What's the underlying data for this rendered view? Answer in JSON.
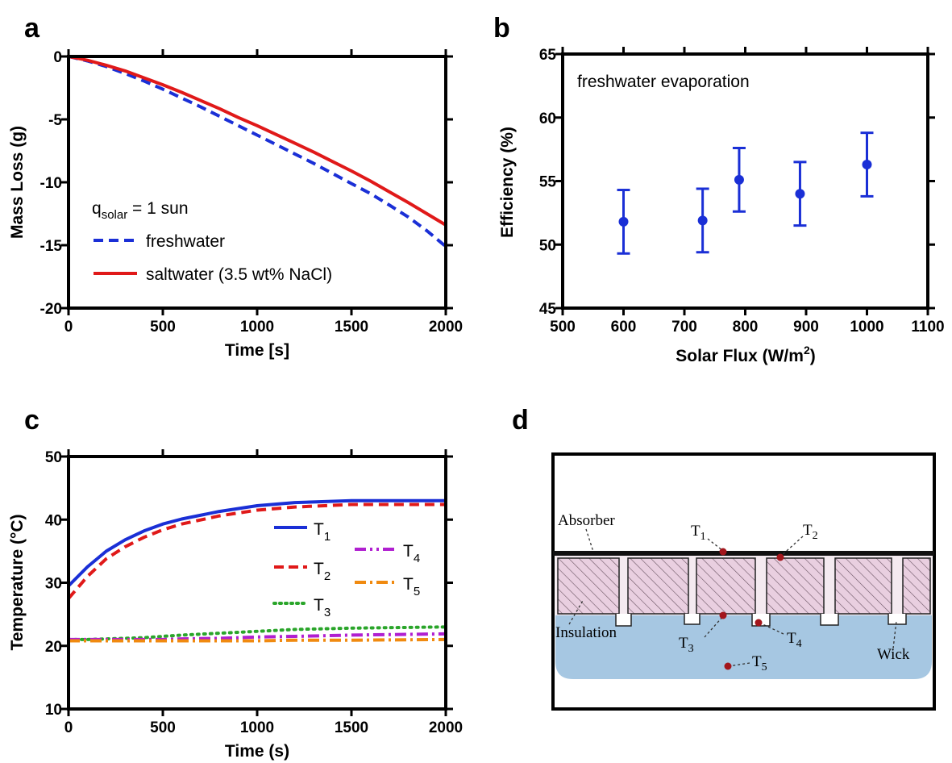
{
  "panels": {
    "a": "a",
    "b": "b",
    "c": "c",
    "d": "d"
  },
  "chart_data": [
    {
      "panel": "a",
      "type": "line",
      "xlabel": "Time [s]",
      "ylabel": "Mass Loss (g)",
      "xlim": [
        0,
        2000
      ],
      "ylim": [
        -20,
        0
      ],
      "xticks": [
        "0",
        "500",
        "1000",
        "1500",
        "2000"
      ],
      "yticks": [
        "0",
        "-5",
        "-10",
        "-15",
        "-20"
      ],
      "annotation": {
        "base": "q",
        "sub": "solar",
        "rest": " = 1 sun"
      },
      "x": [
        0,
        100,
        200,
        300,
        400,
        500,
        600,
        700,
        800,
        900,
        1000,
        1100,
        1200,
        1300,
        1400,
        1500,
        1600,
        1700,
        1800,
        1900,
        2000
      ],
      "series": [
        {
          "name": "freshwater",
          "color": "#1a2fd6",
          "style": "dashed",
          "values": [
            0,
            -0.35,
            -0.8,
            -1.35,
            -1.95,
            -2.6,
            -3.3,
            -4.0,
            -4.75,
            -5.5,
            -6.25,
            -7.0,
            -7.75,
            -8.5,
            -9.3,
            -10.1,
            -10.9,
            -11.8,
            -12.75,
            -13.85,
            -15.1
          ]
        },
        {
          "name": "saltwater (3.5 wt% NaCl)",
          "color": "#e01919",
          "style": "solid",
          "values": [
            0,
            -0.3,
            -0.7,
            -1.15,
            -1.7,
            -2.25,
            -2.85,
            -3.5,
            -4.15,
            -4.85,
            -5.5,
            -6.2,
            -6.9,
            -7.6,
            -8.35,
            -9.1,
            -9.9,
            -10.75,
            -11.6,
            -12.5,
            -13.4
          ]
        }
      ]
    },
    {
      "panel": "b",
      "type": "scatter",
      "xlabel": "Solar Flux (W/m",
      "xlabel_sup": "2",
      "xlabel_end": ")",
      "ylabel": "Efficiency (%)",
      "xlim": [
        500,
        1100
      ],
      "ylim": [
        45,
        65
      ],
      "xticks": [
        "500",
        "600",
        "700",
        "800",
        "900",
        "1000",
        "1100"
      ],
      "yticks": [
        "45",
        "50",
        "55",
        "60",
        "65"
      ],
      "annotation": "freshwater evaporation",
      "color": "#1a2fd6",
      "points": [
        {
          "x": 600,
          "y": 51.8,
          "err": 2.5
        },
        {
          "x": 730,
          "y": 51.9,
          "err": 2.5
        },
        {
          "x": 790,
          "y": 55.1,
          "err": 2.5
        },
        {
          "x": 890,
          "y": 54.0,
          "err": 2.5
        },
        {
          "x": 1000,
          "y": 56.3,
          "err": 2.5
        }
      ]
    },
    {
      "panel": "c",
      "type": "line",
      "xlabel": "Time (s)",
      "ylabel": "Temperature (°C)",
      "xlim": [
        0,
        2000
      ],
      "ylim": [
        10,
        50
      ],
      "xticks": [
        "0",
        "500",
        "1000",
        "1500",
        "2000"
      ],
      "yticks": [
        "10",
        "20",
        "30",
        "40",
        "50"
      ],
      "x": [
        0,
        100,
        200,
        300,
        400,
        500,
        600,
        800,
        1000,
        1200,
        1500,
        2000
      ],
      "series": [
        {
          "name": "T",
          "sub": "1",
          "color": "#1a2fd6",
          "style": "solid",
          "values": [
            29.5,
            32.5,
            35.0,
            36.8,
            38.2,
            39.3,
            40.1,
            41.3,
            42.2,
            42.7,
            43.0,
            43.0
          ]
        },
        {
          "name": "T",
          "sub": "2",
          "color": "#e01919",
          "style": "dashed",
          "values": [
            27.5,
            31.0,
            33.8,
            35.7,
            37.2,
            38.4,
            39.3,
            40.6,
            41.5,
            42.0,
            42.4,
            42.4
          ]
        },
        {
          "name": "T",
          "sub": "3",
          "color": "#2aa52a",
          "style": "dotted",
          "values": [
            21.0,
            21.0,
            21.1,
            21.2,
            21.3,
            21.5,
            21.7,
            22.0,
            22.3,
            22.6,
            22.8,
            23.0
          ]
        },
        {
          "name": "T",
          "sub": "4",
          "color": "#b01fd0",
          "style": "dashdot",
          "values": [
            21.0,
            21.0,
            21.0,
            21.0,
            21.0,
            21.0,
            21.1,
            21.2,
            21.4,
            21.5,
            21.7,
            21.9
          ]
        },
        {
          "name": "T",
          "sub": "5",
          "color": "#f08a10",
          "style": "dashdot",
          "values": [
            20.8,
            20.8,
            20.8,
            20.8,
            20.8,
            20.8,
            20.8,
            20.8,
            20.8,
            20.9,
            20.9,
            21.0
          ]
        }
      ]
    }
  ],
  "diagram_d": {
    "labels": {
      "absorber": "Absorber",
      "insulation": "Insulation",
      "wick": "Wick"
    },
    "probes": [
      {
        "name": "T",
        "sub": "1"
      },
      {
        "name": "T",
        "sub": "2"
      },
      {
        "name": "T",
        "sub": "3"
      },
      {
        "name": "T",
        "sub": "4"
      },
      {
        "name": "T",
        "sub": "5"
      }
    ],
    "colors": {
      "insulation": "#e9cfe0",
      "water": "#a6c7e2",
      "probe": "#a3161c",
      "absorber": "#111111"
    }
  }
}
